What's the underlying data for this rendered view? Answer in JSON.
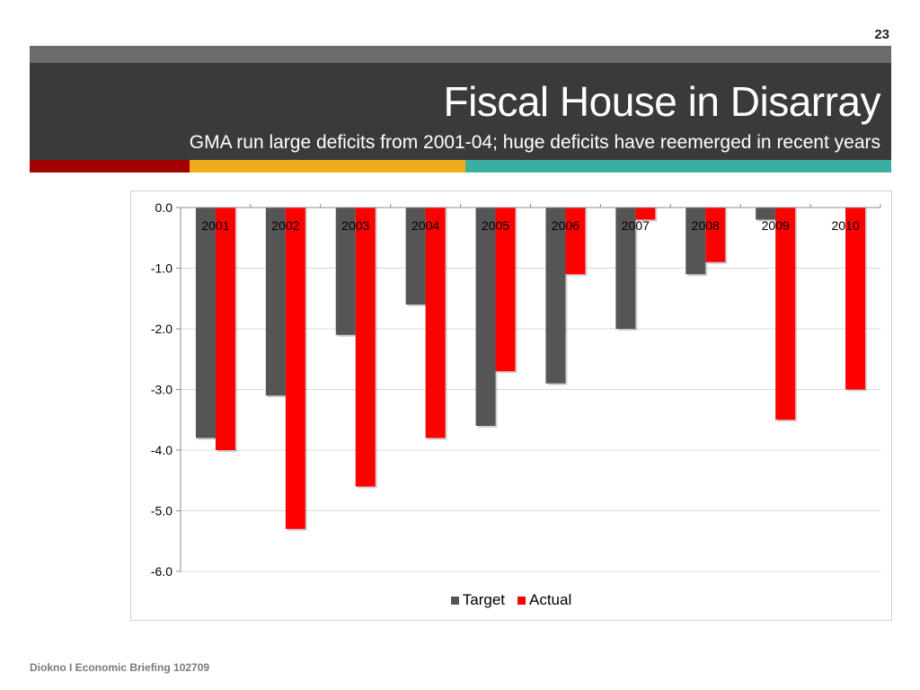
{
  "slide": {
    "number": "23",
    "title": "Fiscal House in Disarray",
    "subtitle": "GMA run large deficits from 2001-04; huge deficits have reemerged in recent years",
    "footer": "Diokno I Economic Briefing 102709"
  },
  "colors": {
    "title_bg": "#3a3a3a",
    "title_strip": "#6b6b6b",
    "accent_red": "#a30000",
    "accent_gold": "#f0ad19",
    "accent_teal": "#3aaea1",
    "target": "#555555",
    "actual": "#ff0000"
  },
  "chart_data": {
    "type": "bar",
    "categories": [
      "2001",
      "2002",
      "2003",
      "2004",
      "2005",
      "2006",
      "2007",
      "2008",
      "2009",
      "2010"
    ],
    "series": [
      {
        "name": "Target",
        "values": [
          -3.8,
          -3.1,
          -2.1,
          -1.6,
          -3.6,
          -2.9,
          -2.0,
          -1.1,
          -0.2,
          null
        ]
      },
      {
        "name": "Actual",
        "values": [
          -4.0,
          -5.3,
          -4.6,
          -3.8,
          -2.7,
          -1.1,
          -0.2,
          -0.9,
          -3.5,
          -3.0
        ]
      }
    ],
    "yticks": [
      "0.0",
      "-1.0",
      "-2.0",
      "-3.0",
      "-4.0",
      "-5.0",
      "-6.0"
    ],
    "ylim": [
      -6.0,
      0.0
    ],
    "grid": true,
    "legend": "bottom"
  }
}
